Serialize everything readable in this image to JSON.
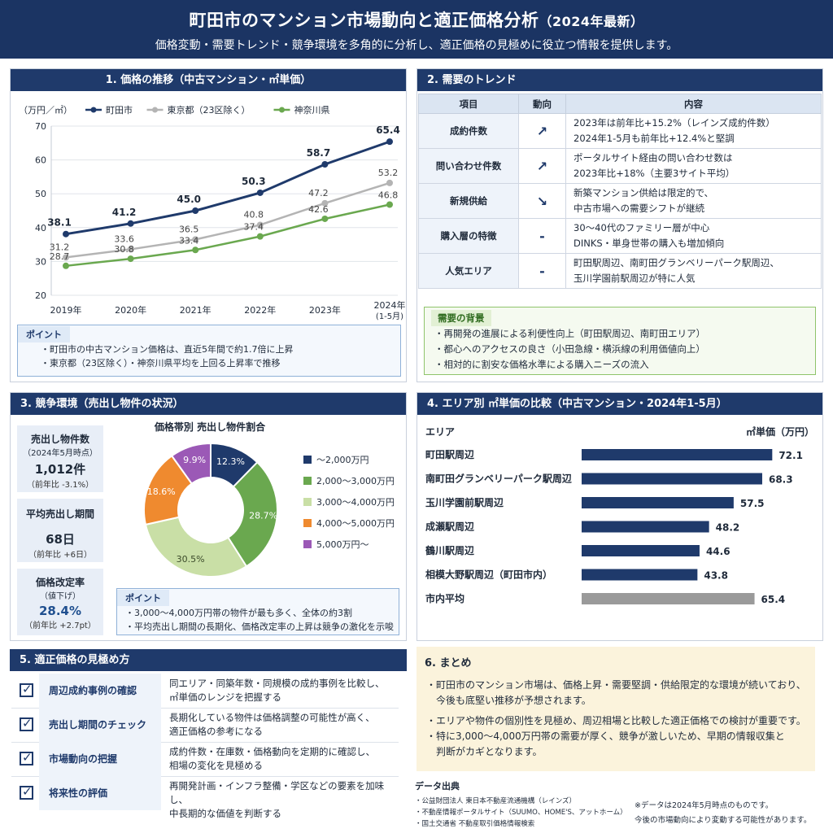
{
  "header": {
    "title": "町田市のマンション市場動向と適正価格分析",
    "title_year": "（2024年最新）",
    "subtitle": "価格変動・需要トレンド・競争環境を多角的に分析し、適正価格の見極めに役立つ情報を提供します。"
  },
  "section1": {
    "title": "1. 価格の推移（中古マンション・㎡単価）",
    "unit": "（万円／㎡）",
    "point_tag": "ポイント",
    "points": [
      "・町田市の中古マンション価格は、直近5年間で約1.7倍に上昇",
      "・東京都（23区除く）・神奈川県平均を上回る上昇率で推移"
    ]
  },
  "section2": {
    "title": "2. 需要のトレンド",
    "headers": [
      "項目",
      "動向",
      "内容"
    ],
    "rows": [
      {
        "item": "成約件数",
        "dir": "↗",
        "desc1": "2023年は前年比+15.2%（レインズ成約件数）",
        "desc2": "2024年1-5月も前年比+12.4%と堅調"
      },
      {
        "item": "問い合わせ件数",
        "dir": "↗",
        "desc1": "ポータルサイト経由の問い合わせ数は",
        "desc2": "2023年比+18%（主要3サイト平均）"
      },
      {
        "item": "新規供給",
        "dir": "↘",
        "desc1": "新築マンション供給は限定的で、",
        "desc2": "中古市場への需要シフトが継続"
      },
      {
        "item": "購入層の特徴",
        "dir": "-",
        "desc1": "30～40代のファミリー層が中心",
        "desc2": "DINKS・単身世帯の購入も増加傾向"
      },
      {
        "item": "人気エリア",
        "dir": "-",
        "desc1": "町田駅周辺、南町田グランベリーパーク駅周辺、",
        "desc2": "玉川学園前駅周辺が特に人気"
      }
    ],
    "bg_tag": "需要の背景",
    "bg_items": [
      "・再開発の進展による利便性向上（町田駅周辺、南町田エリア）",
      "・都心へのアクセスの良さ（小田急線・横浜線の利用価値向上）",
      "・相対的に割安な価格水準による購入ニーズの流入"
    ]
  },
  "section3": {
    "title": "3. 競争環境（売出し物件の状況）",
    "stats": [
      {
        "label": "売出し物件数",
        "sub": "（2024年5月時点）",
        "value": "1,012件",
        "note": "（前年比 -3.1%）"
      },
      {
        "label": "平均売出し期間",
        "sub": "",
        "value": "68日",
        "note": "（前年比 +6日）"
      },
      {
        "label": "価格改定率",
        "sub": "（値下げ）",
        "value": "28.4%",
        "note": "（前年比 +2.7pt）"
      }
    ],
    "point_tag": "ポイント",
    "points": [
      "・3,000～4,000万円帯の物件が最も多く、全体の約3割",
      "・平均売出し期間の長期化、価格改定率の上昇は競争の激化を示唆"
    ]
  },
  "section4": {
    "title": "4. エリア別 ㎡単価の比較（中古マンション・2024年1-5月）",
    "col_area": "エリア",
    "col_unit": "㎡単価（万円）"
  },
  "section5": {
    "title": "5. 適正価格の見極め方",
    "rows": [
      {
        "label": "周辺成約事例の確認",
        "desc1": "同エリア・同築年数・同規模の成約事例を比較し、",
        "desc2": "㎡単価のレンジを把握する"
      },
      {
        "label": "売出し期間のチェック",
        "desc1": "長期化している物件は価格調整の可能性が高く、",
        "desc2": "適正価格の参考になる"
      },
      {
        "label": "市場動向の把握",
        "desc1": "成約件数・在庫数・価格動向を定期的に確認し、",
        "desc2": "相場の変化を見極める"
      },
      {
        "label": "将来性の評価",
        "desc1": "再開発計画・インフラ整備・学区などの要素を加味し、",
        "desc2": "中長期的な価値を判断する"
      }
    ]
  },
  "section6": {
    "title": "6. まとめ",
    "items": [
      "・町田市のマンション市場は、価格上昇・需要堅調・供給限定的な環境が続いており、",
      "　今後も底堅い推移が予想されます。",
      "・エリアや物件の個別性を見極め、周辺相場と比較した適正価格での検討が重要です。",
      "・特に3,000～4,000万円帯の需要が厚く、競争が激しいため、早期の情報収集と",
      "　判断がカギとなります。"
    ]
  },
  "sources": {
    "title": "データ出典",
    "items": [
      "・公益財団法人 東日本不動産流通機構（レインズ）",
      "・不動産情報ポータルサイト（SUUMO、HOME'S、アットホーム）",
      "・国土交通省 不動産取引価格情報検索"
    ],
    "note1": "※データは2024年5月時点のものです。",
    "note2": "今後の市場動向により変動する可能性があります。"
  },
  "colors": {
    "navy": "#1f3a6b",
    "gray": "#b4b4b4",
    "green": "#6aa84f"
  },
  "chart_data": [
    {
      "type": "line",
      "title": "1. 価格の推移（中古マンション・㎡単価）",
      "ylabel": "（万円／㎡）",
      "x": [
        "2019年",
        "2020年",
        "2021年",
        "2022年",
        "2023年",
        "2024年(1-5月)"
      ],
      "ylim": [
        20,
        70
      ],
      "yticks": [
        20,
        30,
        40,
        50,
        60,
        70
      ],
      "grid": true,
      "legend": "top",
      "series": [
        {
          "name": "町田市",
          "color": "#1f3a6b",
          "values": [
            38.1,
            41.2,
            45.0,
            50.3,
            58.7,
            65.4
          ]
        },
        {
          "name": "東京都（23区除く）",
          "color": "#b4b4b4",
          "values": [
            31.2,
            33.6,
            36.5,
            40.8,
            47.2,
            53.2
          ]
        },
        {
          "name": "神奈川県",
          "color": "#6aa84f",
          "values": [
            28.7,
            30.8,
            33.4,
            37.4,
            42.6,
            46.8
          ]
        }
      ]
    },
    {
      "type": "pie",
      "title": "価格帯別 売出し物件割合",
      "legend": "right",
      "slices": [
        {
          "label": "～2,000万円",
          "value": 12.3,
          "color": "#1f3a6b"
        },
        {
          "label": "2,000～3,000万円",
          "value": 28.7,
          "color": "#6aa84f"
        },
        {
          "label": "3,000～4,000万円",
          "value": 30.5,
          "color": "#c9dfa6"
        },
        {
          "label": "4,000～5,000万円",
          "value": 18.6,
          "color": "#ef8a2f"
        },
        {
          "label": "5,000万円～",
          "value": 9.9,
          "color": "#9b59b6"
        }
      ]
    },
    {
      "type": "bar",
      "title": "4. エリア別 ㎡単価の比較（中古マンション・2024年1-5月）",
      "orientation": "horizontal",
      "categories": [
        "町田駅周辺",
        "南町田グランベリーパーク駅周辺",
        "玉川学園前駅周辺",
        "成瀬駅周辺",
        "鶴川駅周辺",
        "相模大野駅周辺（町田市内）",
        "市内平均"
      ],
      "values": [
        72.1,
        68.3,
        57.5,
        48.2,
        44.6,
        43.8,
        65.4
      ],
      "colors": [
        "#1f3a6b",
        "#1f3a6b",
        "#1f3a6b",
        "#1f3a6b",
        "#1f3a6b",
        "#1f3a6b",
        "#9a9a9a"
      ],
      "xlim": [
        0,
        80
      ]
    }
  ]
}
